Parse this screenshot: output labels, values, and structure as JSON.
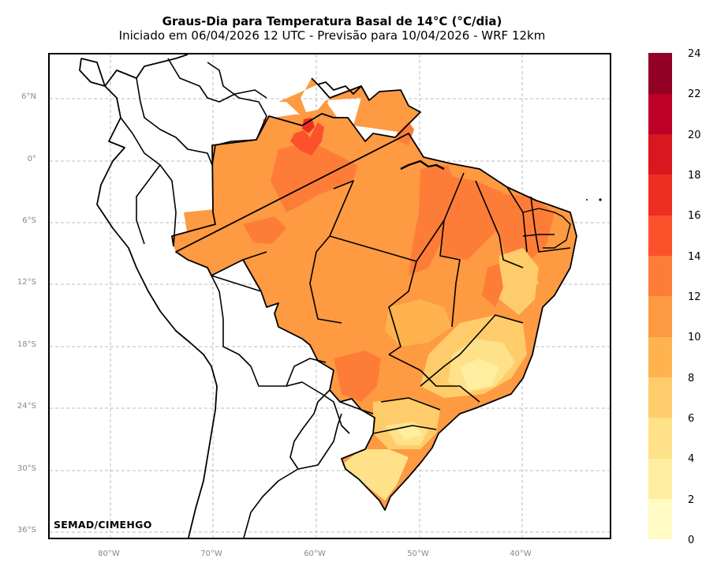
{
  "title": "Graus-Dia para Temperatura Basal de 14°C (°C/dia)",
  "subtitle": "Iniciado em 06/04/2026 12 UTC - Previsão para 10/04/2026 - WRF 12km",
  "credit": "SEMAD/CIMEHGO",
  "map": {
    "lat_labels": [
      "6°N",
      "0°",
      "6°S",
      "12°S",
      "18°S",
      "24°S",
      "30°S",
      "36°S"
    ],
    "lon_labels": [
      "80°W",
      "70°W",
      "60°W",
      "50°W",
      "40°W"
    ]
  },
  "colorbar": {
    "labels": [
      "24",
      "22",
      "20",
      "18",
      "16",
      "14",
      "12",
      "10",
      "8",
      "6",
      "4",
      "2",
      "0"
    ],
    "colors": [
      "#fffbc3",
      "#ffeea0",
      "#fee189",
      "#fecc6a",
      "#feb34e",
      "#fd9a42",
      "#fd7d38",
      "#fc522c",
      "#ed2f22",
      "#d8171e",
      "#bd0026",
      "#930026"
    ]
  }
}
